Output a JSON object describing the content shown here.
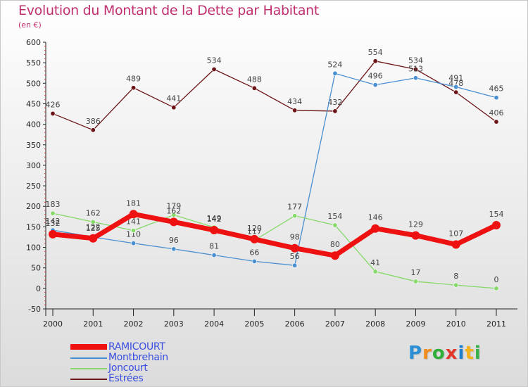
{
  "chart_data": {
    "type": "line",
    "title": "Evolution du Montant de la Dette par Habitant",
    "subtitle": "(en €)",
    "xlabel": "",
    "ylabel": "",
    "categories": [
      "2000",
      "2001",
      "2002",
      "2003",
      "2004",
      "2005",
      "2006",
      "2007",
      "2008",
      "2009",
      "2010",
      "2011"
    ],
    "ylim": [
      -50,
      600
    ],
    "yticks": [
      -50,
      0,
      50,
      100,
      150,
      200,
      250,
      300,
      350,
      400,
      450,
      500,
      550,
      600
    ],
    "grid": false,
    "legend_position": "bottom-left",
    "series": [
      {
        "name": "Estrées",
        "color": "#6b1518",
        "values": [
          426,
          386,
          489,
          441,
          534,
          488,
          434,
          432,
          554,
          534,
          478,
          406
        ],
        "labels": [
          "426",
          "386",
          "489",
          "441",
          "534",
          "488",
          "434",
          "432",
          "554",
          "534",
          "478",
          "406"
        ]
      },
      {
        "name": "Montbrehain",
        "color": "#4a90d0",
        "values": [
          142,
          125,
          110,
          96,
          81,
          66,
          56,
          524,
          496,
          513,
          491,
          465
        ],
        "labels": [
          "142",
          "125",
          "110",
          "96",
          "81",
          "66",
          "56",
          "524",
          "496",
          "513",
          "491",
          "465"
        ]
      },
      {
        "name": "Joncourt",
        "color": "#86d96a",
        "values": [
          183,
          162,
          141,
          179,
          149,
          117,
          177,
          154,
          41,
          17,
          8,
          0
        ],
        "labels": [
          "183",
          "162",
          "141",
          "179",
          "149",
          "117",
          "177",
          "154",
          "41",
          "17",
          "8",
          "0"
        ]
      },
      {
        "name": "RAMICOURT",
        "color": "#ee1111",
        "values": [
          132,
          122,
          181,
          162,
          142,
          120,
          98,
          80,
          146,
          129,
          107,
          154
        ],
        "labels": [
          "132",
          "122",
          "181",
          "162",
          "142",
          "120",
          "98",
          "80",
          "146",
          "129",
          "107",
          "154"
        ]
      }
    ],
    "legend": [
      "RAMICOURT",
      "Montbrehain",
      "Joncourt",
      "Estrées"
    ]
  },
  "legend_items": [
    {
      "label": "RAMICOURT",
      "color": "#ee1111",
      "thick": true
    },
    {
      "label": "Montbrehain",
      "color": "#4a90d0",
      "thick": false
    },
    {
      "label": "Joncourt",
      "color": "#86d96a",
      "thick": false
    },
    {
      "label": "Estrées",
      "color": "#6b1518",
      "thick": false
    }
  ],
  "logo": {
    "letters": [
      {
        "ch": "P",
        "color": "#2b8fd6"
      },
      {
        "ch": "r",
        "color": "#f08a1c"
      },
      {
        "ch": "o",
        "color": "#2fae3a"
      },
      {
        "ch": "x",
        "color": "#e2382a"
      },
      {
        "ch": "i",
        "color": "#1f7fcf"
      },
      {
        "ch": "t",
        "color": "#f2b21b"
      },
      {
        "ch": "i",
        "color": "#38b24a"
      }
    ]
  }
}
